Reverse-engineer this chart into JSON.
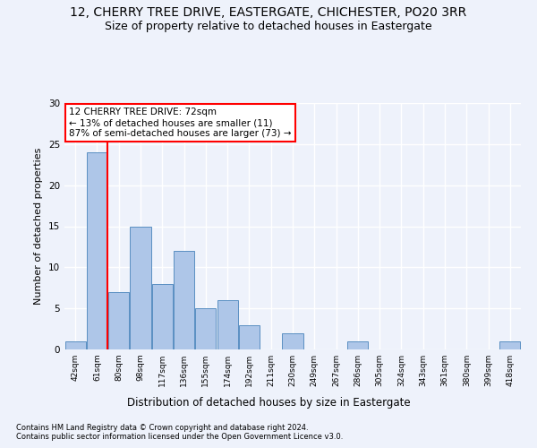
{
  "title1": "12, CHERRY TREE DRIVE, EASTERGATE, CHICHESTER, PO20 3RR",
  "title2": "Size of property relative to detached houses in Eastergate",
  "xlabel": "Distribution of detached houses by size in Eastergate",
  "ylabel": "Number of detached properties",
  "categories": [
    "42sqm",
    "61sqm",
    "80sqm",
    "98sqm",
    "117sqm",
    "136sqm",
    "155sqm",
    "174sqm",
    "192sqm",
    "211sqm",
    "230sqm",
    "249sqm",
    "267sqm",
    "286sqm",
    "305sqm",
    "324sqm",
    "343sqm",
    "361sqm",
    "380sqm",
    "399sqm",
    "418sqm"
  ],
  "values": [
    1,
    24,
    7,
    15,
    8,
    12,
    5,
    6,
    3,
    0,
    2,
    0,
    0,
    1,
    0,
    0,
    0,
    0,
    0,
    0,
    1
  ],
  "bar_color": "#aec6e8",
  "bar_edge_color": "#5a8fc2",
  "red_line_x": 1,
  "annotation_text": "12 CHERRY TREE DRIVE: 72sqm\n← 13% of detached houses are smaller (11)\n87% of semi-detached houses are larger (73) →",
  "annotation_box_color": "white",
  "annotation_box_edge": "red",
  "footer1": "Contains HM Land Registry data © Crown copyright and database right 2024.",
  "footer2": "Contains public sector information licensed under the Open Government Licence v3.0.",
  "ylim": [
    0,
    30
  ],
  "yticks": [
    0,
    5,
    10,
    15,
    20,
    25,
    30
  ],
  "background_color": "#eef2fb",
  "grid_color": "#ffffff",
  "title1_fontsize": 10,
  "title2_fontsize": 9,
  "xlabel_fontsize": 8.5,
  "ylabel_fontsize": 8,
  "footer_fontsize": 6,
  "annot_fontsize": 7.5
}
